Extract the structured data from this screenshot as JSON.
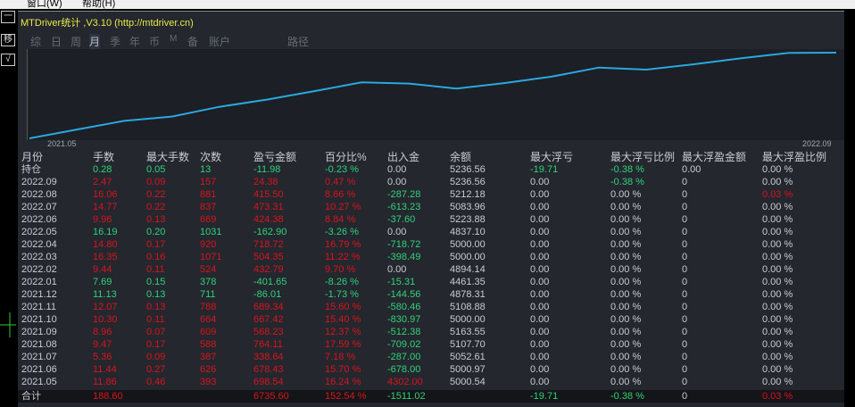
{
  "menu": [
    "窗口(W)",
    "帮助(H)"
  ],
  "toolbar": {
    "buttons": [
      "一",
      "移",
      "√"
    ]
  },
  "title": "MTDriver统计 ,V3.10 (http://mtdriver.cn)",
  "tabs": [
    {
      "label": "综"
    },
    {
      "label": "日"
    },
    {
      "label": "周"
    },
    {
      "label": "月",
      "active": true
    },
    {
      "label": "季"
    },
    {
      "label": "年"
    },
    {
      "label": "币"
    },
    {
      "label": "M"
    },
    {
      "label": "备"
    },
    {
      "label": "账户"
    },
    {
      "label": "路径"
    }
  ],
  "chart": {
    "start_label": "2021.05",
    "end_label": "2022.09",
    "line_color": "#29a8e0"
  },
  "colors": {
    "profit": "#d8141c",
    "loss": "#2fd27a",
    "neutral": "#c8ccd2"
  },
  "table": {
    "headers": [
      "月份",
      "手数",
      "最大手数",
      "次数",
      "盈亏金额",
      "百分比%",
      "出入金",
      "余额",
      "最大浮亏",
      "最大浮亏比例",
      "最大浮盈金额",
      "最大浮盈比例"
    ],
    "rows": [
      [
        "持仓",
        "0.28",
        "0.05",
        "13",
        "-11.98",
        "-0.23 %",
        "0.00",
        "5236.56",
        "-19.71",
        "-0.38 %",
        "0.00",
        "0.00 %"
      ],
      [
        "2022.09",
        "2.47",
        "0.09",
        "157",
        "24.38",
        "0.47 %",
        "0.00",
        "5236.56",
        "0.00",
        "-0.38 %",
        "0",
        "0.00 %"
      ],
      [
        "2022.08",
        "16.06",
        "0.22",
        "881",
        "415.50",
        "8.66 %",
        "-287.28",
        "5212.18",
        "0.00",
        "0.00 %",
        "0",
        "0.03 %"
      ],
      [
        "2022.07",
        "14.77",
        "0.22",
        "837",
        "473.31",
        "10.27 %",
        "-613.23",
        "5083.96",
        "0.00",
        "0.00 %",
        "0",
        "0.00 %"
      ],
      [
        "2022.06",
        "9.96",
        "0.13",
        "669",
        "424.38",
        "8.84 %",
        "-37.60",
        "5223.88",
        "0.00",
        "0.00 %",
        "0",
        "0.00 %"
      ],
      [
        "2022.05",
        "16.19",
        "0.20",
        "1031",
        "-162.90",
        "-3.26 %",
        "0.00",
        "4837.10",
        "0.00",
        "0.00 %",
        "0",
        "0.00 %"
      ],
      [
        "2022.04",
        "14.80",
        "0.17",
        "920",
        "718.72",
        "16.79 %",
        "-718.72",
        "5000.00",
        "0.00",
        "0.00 %",
        "0",
        "0.00 %"
      ],
      [
        "2022.03",
        "16.35",
        "0.16",
        "1071",
        "504.35",
        "11.22 %",
        "-398.49",
        "5000.00",
        "0.00",
        "0.00 %",
        "0",
        "0.00 %"
      ],
      [
        "2022.02",
        "9.44",
        "0.11",
        "524",
        "432.79",
        "9.70 %",
        "0.00",
        "4894.14",
        "0.00",
        "0.00 %",
        "0",
        "0.00 %"
      ],
      [
        "2022.01",
        "7.69",
        "0.15",
        "378",
        "-401.65",
        "-8.26 %",
        "-15.31",
        "4461.35",
        "0.00",
        "0.00 %",
        "0",
        "0.00 %"
      ],
      [
        "2021.12",
        "11.13",
        "0.13",
        "711",
        "-86.01",
        "-1.73 %",
        "-144.56",
        "4878.31",
        "0.00",
        "0.00 %",
        "0",
        "0.00 %"
      ],
      [
        "2021.11",
        "12.07",
        "0.13",
        "788",
        "689.34",
        "15.60 %",
        "-580.46",
        "5108.88",
        "0.00",
        "0.00 %",
        "0",
        "0.00 %"
      ],
      [
        "2021.10",
        "10.30",
        "0.11",
        "664",
        "667.42",
        "15.40 %",
        "-830.97",
        "5000.00",
        "0.00",
        "0.00 %",
        "0",
        "0.00 %"
      ],
      [
        "2021.09",
        "8.96",
        "0.07",
        "609",
        "568.23",
        "12.37 %",
        "-512.38",
        "5163.55",
        "0.00",
        "0.00 %",
        "0",
        "0.00 %"
      ],
      [
        "2021.08",
        "9.47",
        "0.17",
        "588",
        "764.11",
        "17.59 %",
        "-709.02",
        "5107.70",
        "0.00",
        "0.00 %",
        "0",
        "0.00 %"
      ],
      [
        "2021.07",
        "5.36",
        "0.09",
        "387",
        "338.64",
        "7.18 %",
        "-287.00",
        "5052.61",
        "0.00",
        "0.00 %",
        "0",
        "0.00 %"
      ],
      [
        "2021.06",
        "11.44",
        "0.27",
        "626",
        "678.43",
        "15.70 %",
        "-678.00",
        "5000.97",
        "0.00",
        "0.00 %",
        "0",
        "0.00 %"
      ],
      [
        "2021.05",
        "11.86",
        "0.46",
        "393",
        "698.54",
        "16.24 %",
        "4302.00",
        "5000.54",
        "0.00",
        "0.00 %",
        "0",
        "0.00 %"
      ]
    ],
    "total": [
      "合计",
      "188.60",
      "",
      "",
      "6735.60",
      "152.54 %",
      "-1511.02",
      "",
      "-19.71",
      "-0.38 %",
      "0",
      "0.03 %"
    ]
  }
}
